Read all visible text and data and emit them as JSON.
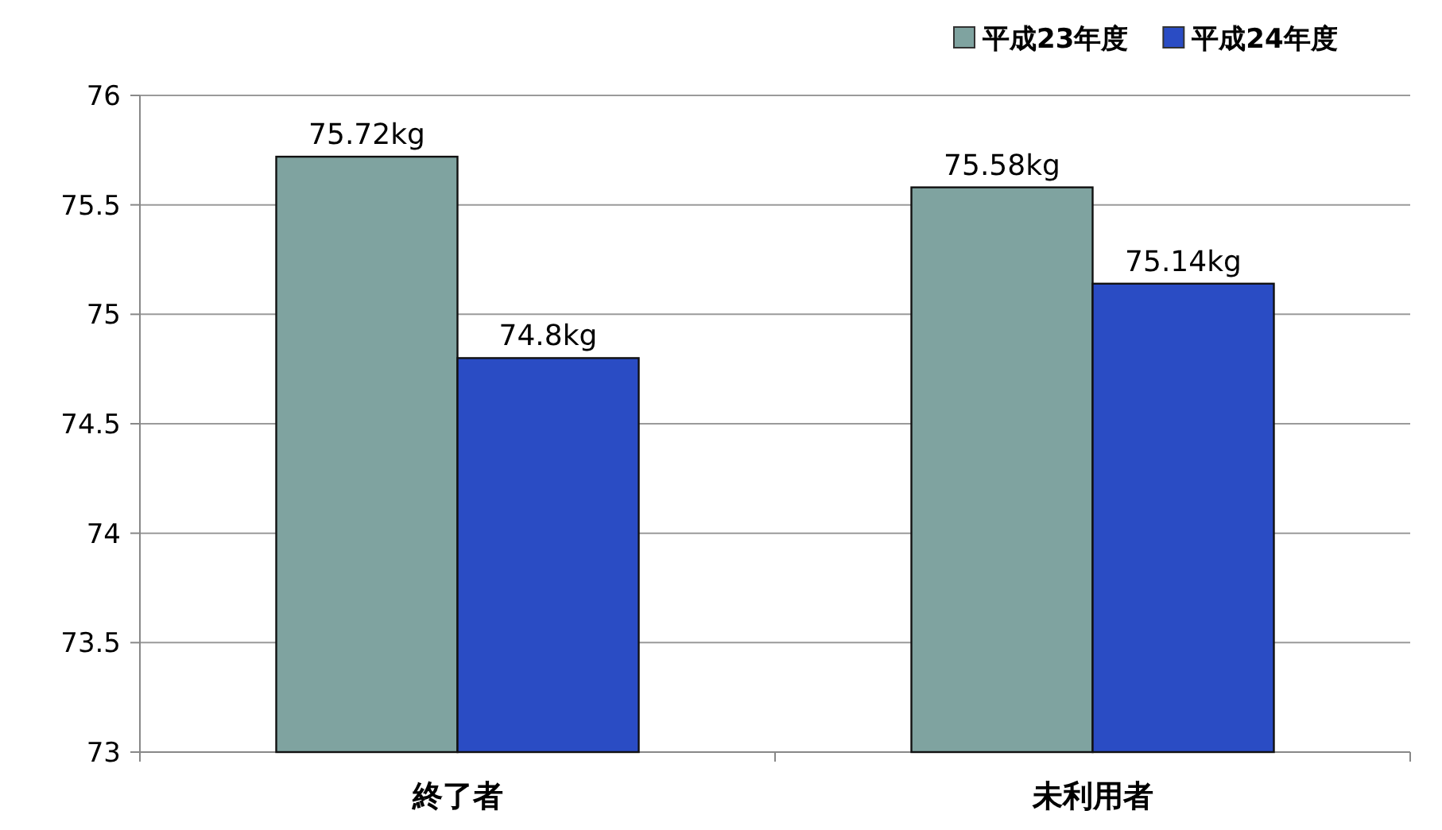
{
  "chart_data": {
    "type": "bar",
    "categories": [
      "終了者",
      "未利用者"
    ],
    "series": [
      {
        "name": "平成23年度",
        "color": "#7fa3a0",
        "values": [
          75.72,
          75.58
        ],
        "value_labels": [
          "75.72kg",
          "75.58kg"
        ]
      },
      {
        "name": "平成24年度",
        "color": "#2a4cc4",
        "values": [
          74.8,
          75.14
        ],
        "value_labels": [
          "74.8kg",
          "75.14kg"
        ]
      }
    ],
    "ylim": [
      73,
      76
    ],
    "yticks": [
      73,
      73.5,
      74,
      74.5,
      75,
      75.5,
      76
    ],
    "grid": "y",
    "legend": "top right"
  }
}
